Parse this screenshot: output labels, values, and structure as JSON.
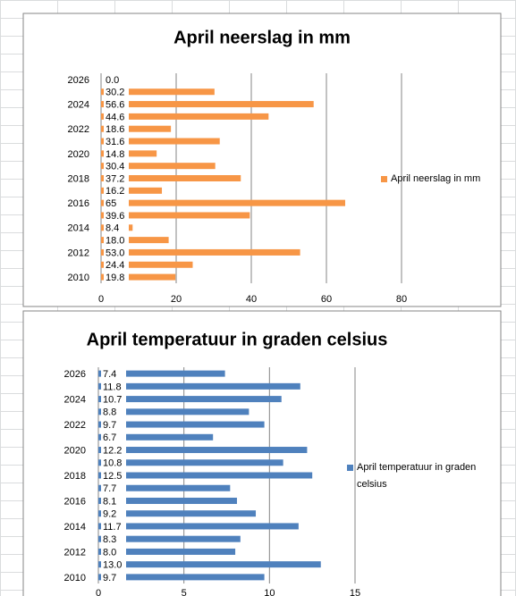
{
  "chart_data": [
    {
      "type": "bar",
      "orientation": "horizontal",
      "title": "April neerslag in mm",
      "categories": [
        "2010",
        null,
        "2012",
        null,
        "2014",
        null,
        "2016",
        null,
        "2018",
        null,
        "2020",
        null,
        "2022",
        null,
        "2024",
        null,
        "2026"
      ],
      "series": [
        {
          "name": "April neerslag in mm",
          "color": "#f79646",
          "values": [
            19.8,
            24.4,
            53.0,
            18.0,
            8.4,
            39.6,
            65,
            16.2,
            37.2,
            30.4,
            14.8,
            31.6,
            18.6,
            44.6,
            56.6,
            30.2,
            0.0
          ],
          "value_labels": [
            "19.8",
            "24.4",
            "53.0",
            "18.0",
            "8.4",
            "39.6",
            "65",
            "16.2",
            "37.2",
            "30.4",
            "14.8",
            "31.6",
            "18.6",
            "44.6",
            "56.6",
            "30.2",
            "0.0"
          ]
        }
      ],
      "xlim": [
        0,
        80
      ],
      "xticks": [
        0,
        20,
        40,
        60,
        80
      ],
      "grid": true,
      "legend": "right"
    },
    {
      "type": "bar",
      "orientation": "horizontal",
      "title": "April temperatuur in graden celsius",
      "categories": [
        "2010",
        null,
        "2012",
        null,
        "2014",
        null,
        "2016",
        null,
        "2018",
        null,
        "2020",
        null,
        "2022",
        null,
        "2024",
        null,
        "2026"
      ],
      "series": [
        {
          "name": "April temperatuur in graden celsius",
          "color": "#4f81bd",
          "values": [
            9.7,
            13.0,
            8.0,
            8.3,
            11.7,
            9.2,
            8.1,
            7.7,
            12.5,
            10.8,
            12.2,
            6.7,
            9.7,
            8.8,
            10.7,
            11.8,
            7.4
          ],
          "value_labels": [
            "9.7",
            "13.0",
            "8.0",
            "8.3",
            "11.7",
            "9.2",
            "8.1",
            "7.7",
            "12.5",
            "10.8",
            "12.2",
            "6.7",
            "9.7",
            "8.8",
            "10.7",
            "11.8",
            "7.4"
          ]
        }
      ],
      "xlim": [
        0,
        15
      ],
      "xticks": [
        0,
        5,
        10,
        15
      ],
      "grid": true,
      "legend": "right"
    }
  ]
}
